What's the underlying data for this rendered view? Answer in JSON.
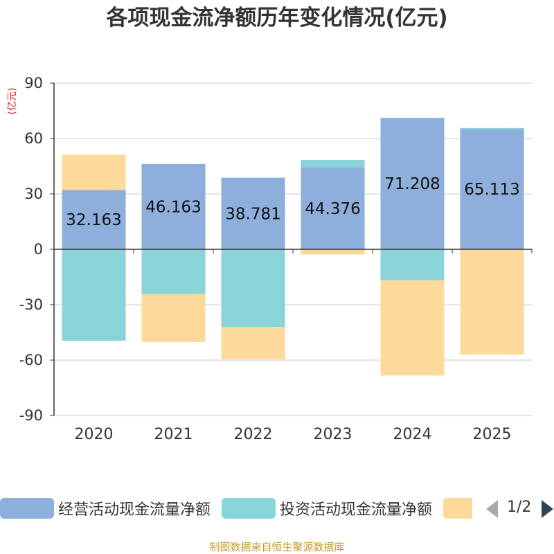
{
  "chart_data": {
    "type": "bar",
    "stacked": true,
    "title": "各项现金流净额历年变化情况(亿元)",
    "ylabel": "(亿元)",
    "categories": [
      "2020",
      "2021",
      "2022",
      "2023",
      "2024",
      "2025"
    ],
    "ylim": [
      -90,
      90
    ],
    "yticks": [
      90,
      60,
      30,
      0,
      -30,
      -60,
      -90
    ],
    "series": [
      {
        "name": "经营活动现金流量净额",
        "color": "#8eaedb",
        "values": [
          32.163,
          46.163,
          38.781,
          44.376,
          71.208,
          65.113
        ],
        "labels": [
          "32.163",
          "46.163",
          "38.781",
          "44.376",
          "71.208",
          "65.113"
        ]
      },
      {
        "name": "投资活动现金流量净额",
        "color": "#88d4d8",
        "values": [
          -49.5,
          -24.2,
          -42.0,
          4.0,
          -16.8,
          0.6
        ]
      },
      {
        "name": "",
        "color": "#fdd99b",
        "values": [
          19.0,
          -26.0,
          -17.5,
          -2.8,
          -51.5,
          -57.0
        ]
      }
    ],
    "legend": {
      "position": "bottom",
      "page": "1/2"
    }
  },
  "footer": "制图数据来自恒生聚源数据库"
}
